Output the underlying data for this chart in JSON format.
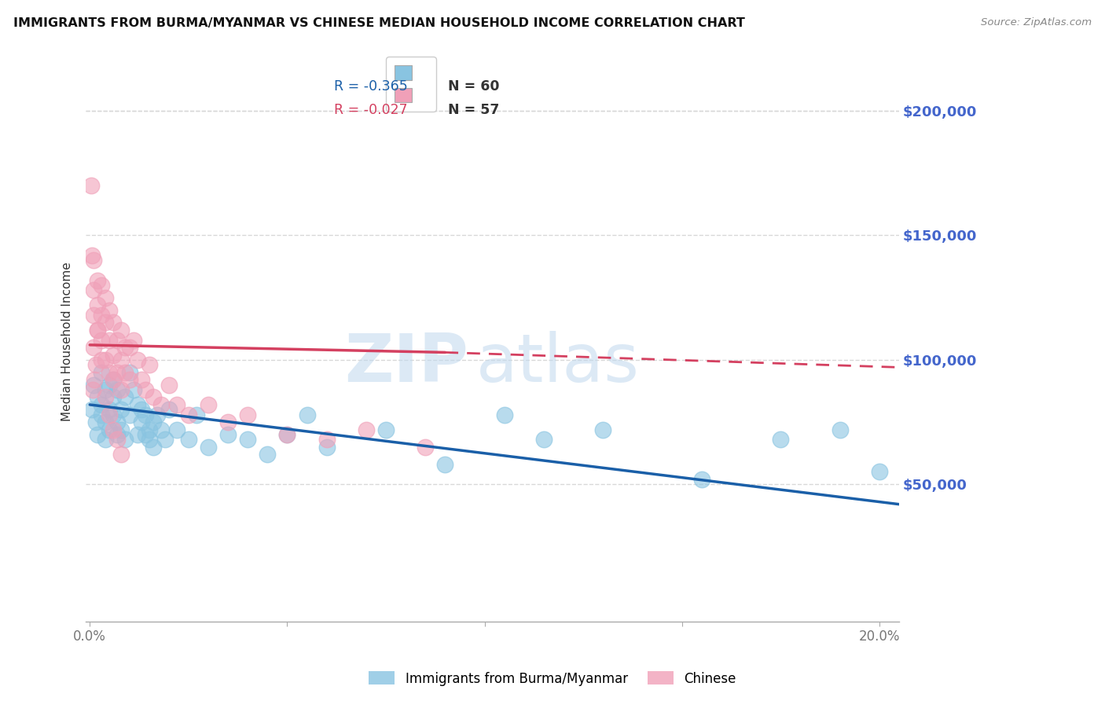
{
  "title": "IMMIGRANTS FROM BURMA/MYANMAR VS CHINESE MEDIAN HOUSEHOLD INCOME CORRELATION CHART",
  "source": "Source: ZipAtlas.com",
  "ylabel": "Median Household Income",
  "yticks": [
    0,
    50000,
    100000,
    150000,
    200000
  ],
  "ytick_labels": [
    "",
    "$50,000",
    "$100,000",
    "$150,000",
    "$200,000"
  ],
  "ylim": [
    -5000,
    220000
  ],
  "xlim": [
    -0.001,
    0.205
  ],
  "color_blue": "#89c4e1",
  "color_pink": "#f0a0b8",
  "color_blue_line": "#1a5fa8",
  "color_pink_line": "#d44060",
  "color_grid": "#d8d8d8",
  "color_ytick_label": "#4466cc",
  "watermark_zip": "ZIP",
  "watermark_atlas": "atlas",
  "legend_r1": "R = -0.365",
  "legend_n1": "N = 60",
  "legend_r2": "R = -0.027",
  "legend_n2": "N = 57",
  "blue_line_x0": 0.0,
  "blue_line_y0": 82000,
  "blue_line_x1": 0.205,
  "blue_line_y1": 42000,
  "pink_line_solid_x0": 0.0,
  "pink_line_solid_y0": 106000,
  "pink_line_solid_x1": 0.09,
  "pink_line_solid_y1": 103000,
  "pink_line_dash_x0": 0.09,
  "pink_line_dash_y0": 103000,
  "pink_line_dash_x1": 0.205,
  "pink_line_dash_y1": 97000,
  "blue_x": [
    0.0005,
    0.001,
    0.0015,
    0.002,
    0.002,
    0.003,
    0.003,
    0.003,
    0.004,
    0.004,
    0.004,
    0.005,
    0.005,
    0.005,
    0.006,
    0.006,
    0.006,
    0.007,
    0.007,
    0.007,
    0.008,
    0.008,
    0.009,
    0.009,
    0.01,
    0.01,
    0.011,
    0.012,
    0.012,
    0.013,
    0.013,
    0.014,
    0.014,
    0.015,
    0.015,
    0.016,
    0.016,
    0.017,
    0.018,
    0.019,
    0.02,
    0.022,
    0.025,
    0.027,
    0.03,
    0.035,
    0.04,
    0.045,
    0.05,
    0.055,
    0.06,
    0.075,
    0.09,
    0.105,
    0.115,
    0.13,
    0.155,
    0.175,
    0.19,
    0.2
  ],
  "blue_y": [
    80000,
    90000,
    75000,
    85000,
    70000,
    95000,
    78000,
    82000,
    88000,
    75000,
    68000,
    90000,
    80000,
    72000,
    85000,
    78000,
    92000,
    88000,
    75000,
    70000,
    80000,
    72000,
    85000,
    68000,
    95000,
    78000,
    88000,
    82000,
    70000,
    80000,
    75000,
    78000,
    70000,
    72000,
    68000,
    75000,
    65000,
    78000,
    72000,
    68000,
    80000,
    72000,
    68000,
    78000,
    65000,
    70000,
    68000,
    62000,
    70000,
    78000,
    65000,
    72000,
    58000,
    78000,
    68000,
    72000,
    52000,
    68000,
    72000,
    55000
  ],
  "pink_x": [
    0.0003,
    0.0005,
    0.001,
    0.001,
    0.001,
    0.002,
    0.002,
    0.002,
    0.003,
    0.003,
    0.003,
    0.004,
    0.004,
    0.004,
    0.005,
    0.005,
    0.005,
    0.006,
    0.006,
    0.006,
    0.007,
    0.007,
    0.008,
    0.008,
    0.008,
    0.009,
    0.009,
    0.01,
    0.01,
    0.011,
    0.012,
    0.013,
    0.014,
    0.015,
    0.016,
    0.018,
    0.02,
    0.022,
    0.025,
    0.03,
    0.035,
    0.04,
    0.05,
    0.06,
    0.07,
    0.085,
    0.001,
    0.0015,
    0.002,
    0.003,
    0.0008,
    0.0012,
    0.004,
    0.005,
    0.006,
    0.007,
    0.008
  ],
  "pink_y": [
    170000,
    142000,
    140000,
    128000,
    118000,
    132000,
    122000,
    112000,
    130000,
    118000,
    108000,
    125000,
    115000,
    100000,
    120000,
    108000,
    95000,
    115000,
    102000,
    92000,
    108000,
    95000,
    112000,
    100000,
    88000,
    105000,
    95000,
    105000,
    92000,
    108000,
    100000,
    92000,
    88000,
    98000,
    85000,
    82000,
    90000,
    82000,
    78000,
    82000,
    75000,
    78000,
    70000,
    68000,
    72000,
    65000,
    105000,
    98000,
    112000,
    100000,
    88000,
    92000,
    85000,
    78000,
    72000,
    68000,
    62000
  ]
}
